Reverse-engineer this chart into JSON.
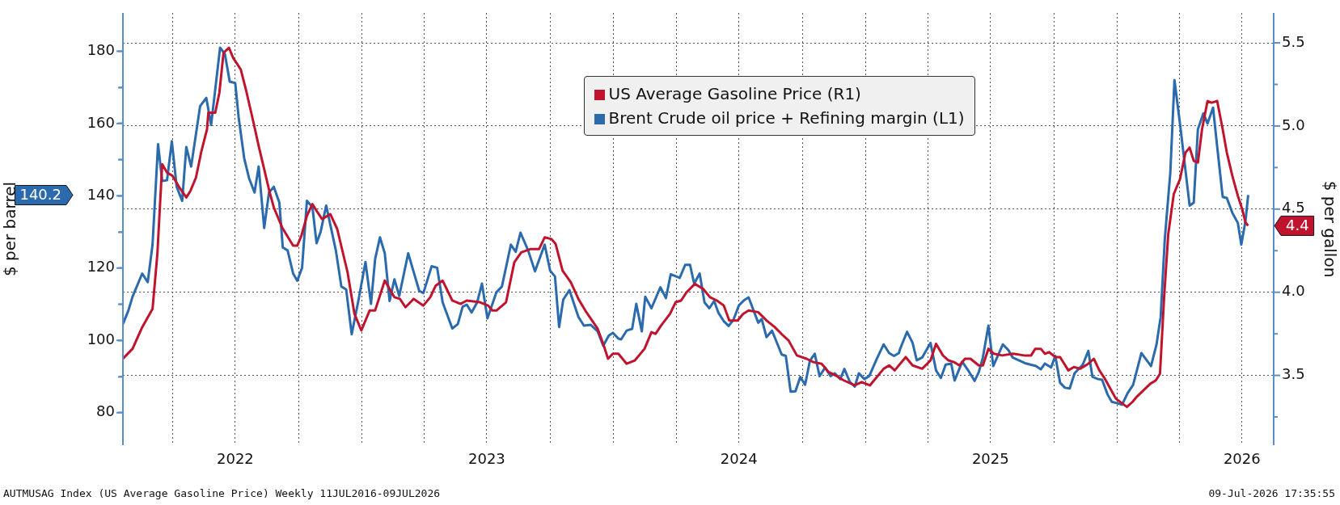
{
  "chart_data": {
    "type": "line",
    "ylabel": "$ per barrel",
    "y2label": "$ per gallon",
    "xlim": [
      "2022-01-19",
      "2026-08-16"
    ],
    "xticks": [
      {
        "value": "2022-04-01",
        "label": null
      },
      {
        "value": "2022-07-01",
        "label": "2022"
      },
      {
        "value": "2022-10-01",
        "label": null
      },
      {
        "value": "2023-01-01",
        "label": null
      },
      {
        "value": "2023-04-01",
        "label": null
      },
      {
        "value": "2023-07-01",
        "label": "2023"
      },
      {
        "value": "2023-10-01",
        "label": null
      },
      {
        "value": "2024-01-01",
        "label": null
      },
      {
        "value": "2024-04-01",
        "label": null
      },
      {
        "value": "2024-07-01",
        "label": "2024"
      },
      {
        "value": "2024-10-01",
        "label": null
      },
      {
        "value": "2025-01-01",
        "label": null
      },
      {
        "value": "2025-04-01",
        "label": null
      },
      {
        "value": "2025-07-01",
        "label": "2025"
      },
      {
        "value": "2025-10-01",
        "label": null
      },
      {
        "value": "2026-01-01",
        "label": null
      },
      {
        "value": "2026-04-01",
        "label": null
      },
      {
        "value": "2026-07-01",
        "label": "2026"
      }
    ],
    "ylim": [
      71,
      190.6
    ],
    "yticks": [
      80,
      {
        "value": 90,
        "label": null
      },
      100,
      {
        "value": 110,
        "label": null
      },
      120,
      {
        "value": 130,
        "label": null
      },
      140,
      {
        "value": 150,
        "label": null
      },
      160,
      {
        "value": 170,
        "label": null
      },
      180
    ],
    "y2lim": [
      3.08,
      5.68
    ],
    "y2ticks": [
      {
        "value": 3.25,
        "label": null
      },
      3.5,
      {
        "value": 3.75,
        "label": null
      },
      {
        "value": 4,
        "label": "4.0"
      },
      {
        "value": 4.25,
        "label": null
      },
      4.5,
      {
        "value": 4.75,
        "label": null
      },
      {
        "value": 5,
        "label": "5.0"
      },
      {
        "value": 5.25,
        "label": null
      },
      5.5
    ],
    "grid": true,
    "legend": "top",
    "annotations": [
      "AUTMUSAG Index (US Average Gasoline Price) Weekly 11JUL2016-09JUL2026",
      "09-Jul-2026 17:35:55",
      "4.4",
      "140.2"
    ],
    "series": [
      {
        "name": "US Average Gasoline Price (R1)",
        "color": "#c0142e",
        "axis": "y2",
        "x": [
          "2022-01-19",
          "2022-02-02",
          "2022-02-16",
          "2022-03-03",
          "2022-03-10",
          "2022-03-17",
          "2022-03-24",
          "2022-04-01",
          "2022-04-11",
          "2022-04-21",
          "2022-04-27",
          "2022-05-05",
          "2022-05-13",
          "2022-05-21",
          "2022-05-23",
          "2022-06-02",
          "2022-06-08",
          "2022-06-14",
          "2022-06-22",
          "2022-06-28",
          "2022-07-09",
          "2022-07-17",
          "2022-07-27",
          "2022-08-04",
          "2022-08-12",
          "2022-08-20",
          "2022-08-26",
          "2022-09-07",
          "2022-09-23",
          "2022-09-29",
          "2022-10-05",
          "2022-10-13",
          "2022-10-21",
          "2022-10-27",
          "2022-11-04",
          "2022-11-16",
          "2022-11-26",
          "2022-12-11",
          "2022-12-21",
          "2022-12-31",
          "2023-01-12",
          "2023-01-20",
          "2023-02-03",
          "2023-02-17",
          "2023-02-25",
          "2023-03-05",
          "2023-03-17",
          "2023-03-31",
          "2023-04-10",
          "2023-04-18",
          "2023-04-28",
          "2023-05-12",
          "2023-05-24",
          "2023-06-02",
          "2023-06-21",
          "2023-07-03",
          "2023-07-09",
          "2023-07-15",
          "2023-07-29",
          "2023-08-10",
          "2023-08-20",
          "2023-09-03",
          "2023-09-15",
          "2023-09-23",
          "2023-10-03",
          "2023-10-09",
          "2023-10-19",
          "2023-10-31",
          "2023-11-11",
          "2023-11-21",
          "2023-12-09",
          "2023-12-17",
          "2023-12-24",
          "2023-12-31",
          "2024-01-08",
          "2024-01-20",
          "2024-02-01",
          "2024-02-15",
          "2024-02-25",
          "2024-03-02",
          "2024-03-10",
          "2024-03-23",
          "2024-03-31",
          "2024-04-08",
          "2024-04-16",
          "2024-04-28",
          "2024-05-10",
          "2024-05-20",
          "2024-05-30",
          "2024-06-09",
          "2024-06-17",
          "2024-06-29",
          "2024-07-07",
          "2024-07-15",
          "2024-07-29",
          "2024-08-10",
          "2024-08-22",
          "2024-09-03",
          "2024-09-11",
          "2024-09-23",
          "2024-10-07",
          "2024-10-17",
          "2024-10-29",
          "2024-11-08",
          "2024-11-18",
          "2024-11-30",
          "2024-12-16",
          "2024-12-26",
          "2025-01-07",
          "2025-01-15",
          "2025-01-27",
          "2025-02-04",
          "2025-02-12",
          "2025-02-28",
          "2025-03-10",
          "2025-03-24",
          "2025-04-05",
          "2025-04-13",
          "2025-04-23",
          "2025-05-01",
          "2025-05-09",
          "2025-05-17",
          "2025-05-25",
          "2025-06-02",
          "2025-06-14",
          "2025-06-20",
          "2025-06-28",
          "2025-07-06",
          "2025-07-18",
          "2025-08-03",
          "2025-08-19",
          "2025-08-29",
          "2025-09-04",
          "2025-09-12",
          "2025-09-18",
          "2025-09-24",
          "2025-10-03",
          "2025-10-10",
          "2025-10-22",
          "2025-10-30",
          "2025-11-08",
          "2025-11-20",
          "2025-11-28",
          "2025-12-06",
          "2025-12-14",
          "2025-12-30",
          "2026-01-15",
          "2026-01-23",
          "2026-01-29",
          "2026-02-08",
          "2026-02-18",
          "2026-02-26",
          "2026-03-04",
          "2026-03-10",
          "2026-03-16",
          "2026-03-24",
          "2026-04-02",
          "2026-04-10",
          "2026-04-16",
          "2026-04-22",
          "2026-04-28",
          "2026-05-04",
          "2026-05-12",
          "2026-05-18",
          "2026-05-26",
          "2026-06-03",
          "2026-06-09",
          "2026-06-17",
          "2026-06-25",
          "2026-07-02",
          "2026-07-06",
          "2026-07-10"
        ],
        "values": [
          3.6,
          3.66,
          3.79,
          3.9,
          4.23,
          4.77,
          4.72,
          4.7,
          4.63,
          4.57,
          4.61,
          4.69,
          4.85,
          4.98,
          5.08,
          5.08,
          5.2,
          5.44,
          5.47,
          5.41,
          5.34,
          5.21,
          5.03,
          4.88,
          4.74,
          4.6,
          4.51,
          4.39,
          4.28,
          4.28,
          4.34,
          4.46,
          4.53,
          4.49,
          4.44,
          4.47,
          4.38,
          4.12,
          3.87,
          3.77,
          3.89,
          3.89,
          4.07,
          3.97,
          3.96,
          3.91,
          3.96,
          3.92,
          3.97,
          4.04,
          4.07,
          3.95,
          3.93,
          3.95,
          3.94,
          3.92,
          3.89,
          3.89,
          3.94,
          4.18,
          4.24,
          4.26,
          4.26,
          4.33,
          4.32,
          4.29,
          4.13,
          4.06,
          3.96,
          3.89,
          3.78,
          3.69,
          3.6,
          3.63,
          3.63,
          3.57,
          3.59,
          3.66,
          3.76,
          3.75,
          3.8,
          3.87,
          3.94,
          3.95,
          4.0,
          4.05,
          4.02,
          3.97,
          3.95,
          3.92,
          3.83,
          3.83,
          3.87,
          3.89,
          3.88,
          3.83,
          3.79,
          3.74,
          3.71,
          3.62,
          3.6,
          3.58,
          3.57,
          3.52,
          3.5,
          3.47,
          3.44,
          3.46,
          3.44,
          3.48,
          3.54,
          3.56,
          3.53,
          3.61,
          3.56,
          3.54,
          3.59,
          3.69,
          3.62,
          3.59,
          3.58,
          3.56,
          3.6,
          3.6,
          3.56,
          3.56,
          3.66,
          3.63,
          3.62,
          3.63,
          3.62,
          3.62,
          3.66,
          3.66,
          3.63,
          3.64,
          3.61,
          3.61,
          3.53,
          3.55,
          3.54,
          3.57,
          3.6,
          3.53,
          3.48,
          3.36,
          3.31,
          3.34,
          3.37,
          3.41,
          3.45,
          3.47,
          3.51,
          3.97,
          4.35,
          4.59,
          4.68,
          4.84,
          4.87,
          4.79,
          4.78,
          4.98,
          5.15,
          5.14,
          5.15,
          4.98,
          4.84,
          4.7,
          4.58,
          4.49,
          4.42,
          4.4
        ]
      },
      {
        "name": "Brent Crude oil price + Refining margin (L1)",
        "color": "#2a6aad",
        "axis": "y",
        "x": [
          "2022-01-19",
          "2022-01-27",
          "2022-02-02",
          "2022-02-16",
          "2022-02-24",
          "2022-03-03",
          "2022-03-11",
          "2022-03-17",
          "2022-03-24",
          "2022-03-31",
          "2022-04-07",
          "2022-04-15",
          "2022-04-21",
          "2022-04-28",
          "2022-05-11",
          "2022-05-20",
          "2022-05-27",
          "2022-06-09",
          "2022-06-16",
          "2022-06-23",
          "2022-07-01",
          "2022-07-06",
          "2022-07-14",
          "2022-07-21",
          "2022-07-29",
          "2022-08-04",
          "2022-08-12",
          "2022-08-19",
          "2022-08-26",
          "2022-09-03",
          "2022-09-08",
          "2022-09-15",
          "2022-09-23",
          "2022-09-29",
          "2022-10-06",
          "2022-10-13",
          "2022-10-21",
          "2022-10-27",
          "2022-11-02",
          "2022-11-10",
          "2022-11-24",
          "2022-12-02",
          "2022-12-09",
          "2022-12-17",
          "2022-12-27",
          "2023-01-06",
          "2023-01-14",
          "2023-01-20",
          "2023-01-27",
          "2023-02-03",
          "2023-02-10",
          "2023-02-17",
          "2023-02-24",
          "2023-03-09",
          "2023-03-25",
          "2023-03-31",
          "2023-04-12",
          "2023-04-20",
          "2023-04-28",
          "2023-05-12",
          "2023-05-20",
          "2023-05-27",
          "2023-06-02",
          "2023-06-09",
          "2023-06-17",
          "2023-06-24",
          "2023-07-02",
          "2023-07-15",
          "2023-07-23",
          "2023-08-05",
          "2023-08-12",
          "2023-08-19",
          "2023-08-30",
          "2023-09-09",
          "2023-09-23",
          "2023-10-01",
          "2023-10-08",
          "2023-10-14",
          "2023-10-20",
          "2023-10-29",
          "2023-11-11",
          "2023-11-19",
          "2023-11-29",
          "2023-12-09",
          "2023-12-17",
          "2023-12-25",
          "2023-12-31",
          "2024-01-08",
          "2024-01-12",
          "2024-01-20",
          "2024-01-28",
          "2024-02-03",
          "2024-02-11",
          "2024-02-16",
          "2024-02-25",
          "2024-03-09",
          "2024-03-17",
          "2024-03-24",
          "2024-04-06",
          "2024-04-14",
          "2024-04-21",
          "2024-04-27",
          "2024-05-05",
          "2024-05-12",
          "2024-05-19",
          "2024-05-26",
          "2024-06-01",
          "2024-06-09",
          "2024-06-16",
          "2024-06-23",
          "2024-07-01",
          "2024-07-09",
          "2024-07-15",
          "2024-07-21",
          "2024-07-29",
          "2024-08-03",
          "2024-08-10",
          "2024-08-18",
          "2024-09-01",
          "2024-09-07",
          "2024-09-14",
          "2024-09-21",
          "2024-09-28",
          "2024-10-05",
          "2024-10-12",
          "2024-10-19",
          "2024-10-26",
          "2024-11-03",
          "2024-11-11",
          "2024-11-17",
          "2024-11-25",
          "2024-12-01",
          "2024-12-09",
          "2024-12-16",
          "2024-12-22",
          "2024-12-30",
          "2025-01-06",
          "2025-01-17",
          "2025-01-27",
          "2025-02-04",
          "2025-02-11",
          "2025-02-18",
          "2025-02-20",
          "2025-03-02",
          "2025-03-10",
          "2025-03-16",
          "2025-03-24",
          "2025-04-05",
          "2025-04-13",
          "2025-04-20",
          "2025-04-27",
          "2025-05-05",
          "2025-05-10",
          "2025-05-21",
          "2025-05-31",
          "2025-06-08",
          "2025-06-14",
          "2025-06-20",
          "2025-06-28",
          "2025-07-05",
          "2025-07-19",
          "2025-07-27",
          "2025-08-02",
          "2025-08-20",
          "2025-08-28",
          "2025-09-05",
          "2025-09-12",
          "2025-09-18",
          "2025-09-27",
          "2025-10-03",
          "2025-10-10",
          "2025-10-17",
          "2025-10-24",
          "2025-10-31",
          "2025-11-12",
          "2025-11-20",
          "2025-11-26",
          "2025-12-04",
          "2025-12-10",
          "2025-12-18",
          "2025-12-24",
          "2025-12-30",
          "2026-01-08",
          "2026-01-16",
          "2026-01-24",
          "2026-02-05",
          "2026-02-19",
          "2026-02-27",
          "2026-03-05",
          "2026-03-11",
          "2026-03-19",
          "2026-03-25",
          "2026-04-02",
          "2026-04-16",
          "2026-04-22",
          "2026-04-28",
          "2026-05-06",
          "2026-05-12",
          "2026-05-20",
          "2026-05-26",
          "2026-06-03",
          "2026-06-09",
          "2026-06-17",
          "2026-06-25",
          "2026-06-30",
          "2026-07-06",
          "2026-07-10"
        ],
        "values": [
          104.5,
          108.3,
          112.1,
          118.5,
          116.1,
          126.5,
          154.3,
          144.1,
          144.3,
          155.1,
          142.5,
          138.6,
          153.5,
          148.1,
          164.8,
          167.1,
          159.6,
          181.0,
          179.2,
          171.6,
          171.2,
          161.6,
          150.4,
          144.9,
          140.9,
          148.1,
          131.1,
          140.9,
          142.5,
          138.1,
          125.7,
          124.9,
          118.5,
          116.5,
          120.1,
          138.6,
          136.9,
          126.9,
          130.1,
          137.3,
          124.9,
          114.9,
          114.1,
          101.7,
          111.3,
          121.7,
          110.1,
          122.5,
          128.5,
          124.1,
          110.9,
          116.9,
          112.3,
          124.1,
          113.7,
          113.1,
          120.5,
          120.1,
          110.5,
          103.3,
          104.5,
          109.3,
          109.9,
          107.7,
          110.5,
          115.7,
          106.1,
          113.3,
          114.9,
          126.5,
          124.5,
          129.8,
          124.9,
          119.1,
          126.5,
          119.3,
          117.7,
          103.7,
          111.3,
          113.9,
          106.5,
          104.1,
          104.3,
          102.5,
          98.5,
          101.3,
          102.1,
          100.5,
          100.3,
          102.7,
          103.2,
          110.1,
          102.5,
          112.1,
          108.9,
          114.7,
          111.7,
          118.3,
          117.3,
          120.9,
          120.9,
          115.7,
          118.5,
          110.5,
          108.9,
          110.9,
          107.7,
          105.3,
          104.0,
          105.7,
          109.7,
          111.2,
          111.9,
          108.9,
          104.9,
          105.9,
          100.9,
          102.7,
          96.1,
          95.7,
          85.8,
          85.9,
          89.9,
          87.7,
          94.4,
          96.3,
          90.1,
          92.5,
          90.1,
          90.9,
          89.3,
          92.1,
          88.5,
          87.2,
          90.9,
          89.3,
          90.1,
          94.9,
          98.9,
          96.5,
          95.7,
          96.5,
          97.7,
          102.4,
          99.3,
          94.5,
          95.3,
          99.3,
          91.7,
          89.6,
          93.3,
          93.6,
          88.9,
          94.1,
          91.3,
          88.8,
          91.2,
          95.3,
          104.1,
          92.9,
          98.9,
          97.3,
          95.3,
          93.7,
          93.3,
          92.9,
          92.0,
          93.6,
          92.5,
          95.7,
          88.3,
          86.9,
          86.7,
          90.9,
          93.3,
          97.1,
          89.9,
          89.3,
          89.1,
          85.0,
          83.0,
          82.7,
          82.2,
          85.4,
          87.7,
          96.5,
          92.9,
          98.9,
          106.5,
          128.1,
          146.5,
          172.0,
          160.0,
          137.3,
          138.1,
          158.4,
          162.8,
          160.0,
          164.4,
          153.6,
          139.7,
          139.4,
          135.3,
          132.5,
          126.5,
          132.9,
          140.2
        ]
      }
    ]
  }
}
